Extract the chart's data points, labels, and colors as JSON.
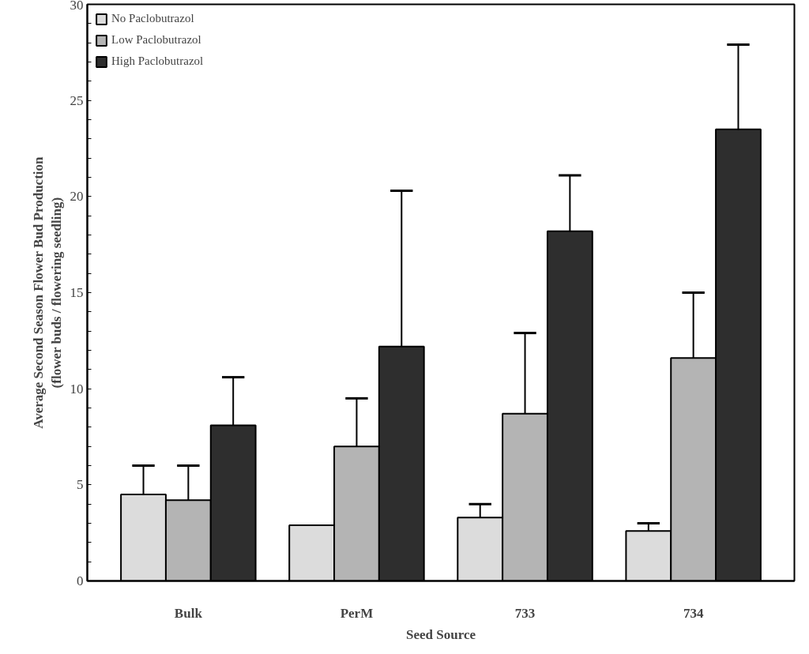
{
  "chart_data": {
    "type": "bar",
    "xlabel": "Seed Source",
    "ylabel": "Average Second Season Flower Bud Production\n(flower buds / flowering seedling)",
    "categories": [
      "Bulk",
      "PerM",
      "733",
      "734"
    ],
    "series": [
      {
        "name": "No Paclobutrazol",
        "color": "#dcdcdc",
        "values": [
          4.5,
          2.9,
          3.3,
          2.6
        ],
        "errors": [
          [
            4.5,
            6.0
          ],
          null,
          [
            3.3,
            4.0
          ],
          [
            2.6,
            3.0
          ]
        ]
      },
      {
        "name": "Low Paclobutrazol",
        "color": "#b4b4b4",
        "values": [
          4.2,
          7.0,
          8.7,
          11.6
        ],
        "errors": [
          [
            4.2,
            6.0
          ],
          [
            7.0,
            9.5
          ],
          [
            8.7,
            12.9
          ],
          [
            11.6,
            15.0
          ]
        ]
      },
      {
        "name": "High Paclobutrazol",
        "color": "#2e2e2e",
        "values": [
          8.1,
          12.2,
          18.2,
          23.5
        ],
        "errors": [
          [
            8.1,
            10.6
          ],
          [
            12.2,
            20.3
          ],
          [
            18.2,
            21.1
          ],
          [
            23.5,
            27.9
          ]
        ]
      }
    ],
    "ylim": [
      0,
      30
    ],
    "yticks": [
      0,
      {
        "value": 1,
        "label": null
      },
      {
        "value": 2,
        "label": null
      },
      {
        "value": 3,
        "label": null
      },
      {
        "value": 4,
        "label": null
      },
      5,
      {
        "value": 6,
        "label": null
      },
      {
        "value": 7,
        "label": null
      },
      {
        "value": 8,
        "label": null
      },
      {
        "value": 9,
        "label": null
      },
      10,
      {
        "value": 11,
        "label": null
      },
      {
        "value": 12,
        "label": null
      },
      {
        "value": 13,
        "label": null
      },
      {
        "value": 14,
        "label": null
      },
      15,
      {
        "value": 16,
        "label": null
      },
      {
        "value": 17,
        "label": null
      },
      {
        "value": 18,
        "label": null
      },
      {
        "value": 19,
        "label": null
      },
      20,
      {
        "value": 21,
        "label": null
      },
      {
        "value": 22,
        "label": null
      },
      {
        "value": 23,
        "label": null
      },
      {
        "value": 24,
        "label": null
      },
      25,
      {
        "value": 26,
        "label": null
      },
      {
        "value": 27,
        "label": null
      },
      {
        "value": 28,
        "label": null
      },
      {
        "value": 29,
        "label": null
      },
      30
    ],
    "grid": false,
    "legend": "top left"
  }
}
